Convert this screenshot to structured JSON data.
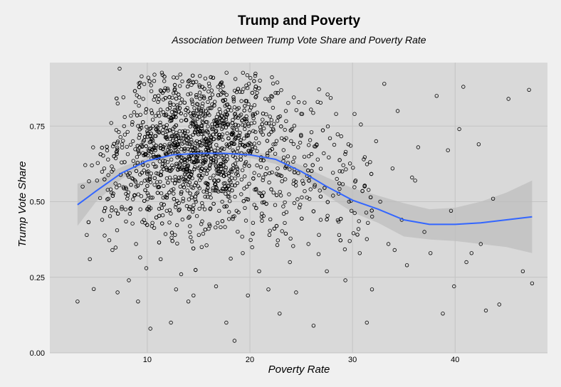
{
  "chart_data": {
    "type": "scatter",
    "title": "Trump and Poverty",
    "subtitle": "Association between Trump Vote Share and Poverty Rate",
    "xlabel": "Poverty Rate",
    "ylabel": "Trump Vote Share",
    "xlim": [
      0.5,
      49
    ],
    "ylim": [
      0,
      0.96
    ],
    "x_ticks": [
      10,
      20,
      30,
      40
    ],
    "x_tick_labels": [
      "10",
      "20",
      "30",
      "40"
    ],
    "y_ticks": [
      0,
      0.25,
      0.5,
      0.75
    ],
    "y_tick_labels": [
      "0.00",
      "0.25",
      "0.50",
      "0.75"
    ],
    "grid": true,
    "legend": "none",
    "colors": {
      "panel": "#d9d9d9",
      "background": "#f0f0f0",
      "grid": "#c4c4c4",
      "point": "#000000",
      "smooth_line": "#3366ff",
      "ribbon": "#bdbdbd"
    },
    "points": [
      [
        3.2,
        0.17
      ],
      [
        3.7,
        0.55
      ],
      [
        4.1,
        0.39
      ],
      [
        4.4,
        0.31
      ],
      [
        4.6,
        0.62
      ],
      [
        5.1,
        0.57
      ],
      [
        5.6,
        0.44
      ],
      [
        5.8,
        0.61
      ],
      [
        6.2,
        0.51
      ],
      [
        6.6,
        0.34
      ],
      [
        6.9,
        0.56
      ],
      [
        7.1,
        0.2
      ],
      [
        7.3,
        0.94
      ],
      [
        7.5,
        0.63
      ],
      [
        7.8,
        0.78
      ],
      [
        8.1,
        0.52
      ],
      [
        8.3,
        0.46
      ],
      [
        8.6,
        0.7
      ],
      [
        8.9,
        0.36
      ],
      [
        9.1,
        0.17
      ],
      [
        9.3,
        0.59
      ],
      [
        9.6,
        0.84
      ],
      [
        9.9,
        0.28
      ],
      [
        10.1,
        0.67
      ],
      [
        10.3,
        0.08
      ],
      [
        10.5,
        0.43
      ],
      [
        10.7,
        0.92
      ],
      [
        10.9,
        0.74
      ],
      [
        11.1,
        0.55
      ],
      [
        11.3,
        0.31
      ],
      [
        11.5,
        0.86
      ],
      [
        11.7,
        0.62
      ],
      [
        11.9,
        0.47
      ],
      [
        12.1,
        0.78
      ],
      [
        12.3,
        0.1
      ],
      [
        12.5,
        0.69
      ],
      [
        12.7,
        0.39
      ],
      [
        12.9,
        0.91
      ],
      [
        13.1,
        0.58
      ],
      [
        13.3,
        0.26
      ],
      [
        13.5,
        0.72
      ],
      [
        13.7,
        0.64
      ],
      [
        13.9,
        0.81
      ],
      [
        14.1,
        0.45
      ],
      [
        14.3,
        0.66
      ],
      [
        14.5,
        0.19
      ],
      [
        14.7,
        0.76
      ],
      [
        14.9,
        0.53
      ],
      [
        15.1,
        0.88
      ],
      [
        15.3,
        0.35
      ],
      [
        15.5,
        0.7
      ],
      [
        15.7,
        0.61
      ],
      [
        15.9,
        0.83
      ],
      [
        16.1,
        0.42
      ],
      [
        16.3,
        0.74
      ],
      [
        16.5,
        0.57
      ],
      [
        16.7,
        0.22
      ],
      [
        16.9,
        0.79
      ],
      [
        17.1,
        0.66
      ],
      [
        17.3,
        0.5
      ],
      [
        17.5,
        0.86
      ],
      [
        17.7,
        0.1
      ],
      [
        17.9,
        0.71
      ],
      [
        18.1,
        0.6
      ],
      [
        18.3,
        0.76
      ],
      [
        18.5,
        0.04
      ],
      [
        18.7,
        0.47
      ],
      [
        18.9,
        0.81
      ],
      [
        19.1,
        0.65
      ],
      [
        19.3,
        0.33
      ],
      [
        19.5,
        0.74
      ],
      [
        19.7,
        0.55
      ],
      [
        19.9,
        0.89
      ],
      [
        20.1,
        0.69
      ],
      [
        20.3,
        0.43
      ],
      [
        20.5,
        0.79
      ],
      [
        20.7,
        0.62
      ],
      [
        20.9,
        0.27
      ],
      [
        21.1,
        0.73
      ],
      [
        21.3,
        0.58
      ],
      [
        21.5,
        0.84
      ],
      [
        21.7,
        0.66
      ],
      [
        21.9,
        0.39
      ],
      [
        22.1,
        0.77
      ],
      [
        22.3,
        0.53
      ],
      [
        22.5,
        0.86
      ],
      [
        22.7,
        0.61
      ],
      [
        22.9,
        0.13
      ],
      [
        23.1,
        0.71
      ],
      [
        23.3,
        0.46
      ],
      [
        23.5,
        0.8
      ],
      [
        23.7,
        0.65
      ],
      [
        23.9,
        0.3
      ],
      [
        24.1,
        0.74
      ],
      [
        24.3,
        0.57
      ],
      [
        24.5,
        0.2
      ],
      [
        24.7,
        0.68
      ],
      [
        24.9,
        0.49
      ],
      [
        25.1,
        0.79
      ],
      [
        25.4,
        0.62
      ],
      [
        25.7,
        0.36
      ],
      [
        26.0,
        0.73
      ],
      [
        26.3,
        0.55
      ],
      [
        26.6,
        0.83
      ],
      [
        26.9,
        0.44
      ],
      [
        27.2,
        0.66
      ],
      [
        27.5,
        0.27
      ],
      [
        27.8,
        0.71
      ],
      [
        28.1,
        0.52
      ],
      [
        28.4,
        0.79
      ],
      [
        28.7,
        0.39
      ],
      [
        29.0,
        0.6
      ],
      [
        29.3,
        0.24
      ],
      [
        29.6,
        0.69
      ],
      [
        29.9,
        0.47
      ],
      [
        30.3,
        0.57
      ],
      [
        30.7,
        0.33
      ],
      [
        31.1,
        0.64
      ],
      [
        31.5,
        0.43
      ],
      [
        31.9,
        0.21
      ],
      [
        32.3,
        0.7
      ],
      [
        32.7,
        0.5
      ],
      [
        33.1,
        0.89
      ],
      [
        33.5,
        0.36
      ],
      [
        33.9,
        0.61
      ],
      [
        34.4,
        0.8
      ],
      [
        34.8,
        0.44
      ],
      [
        35.3,
        0.29
      ],
      [
        35.8,
        0.58
      ],
      [
        36.4,
        0.68
      ],
      [
        37.0,
        0.4
      ],
      [
        37.6,
        0.33
      ],
      [
        38.2,
        0.85
      ],
      [
        38.8,
        0.13
      ],
      [
        39.3,
        0.67
      ],
      [
        39.9,
        0.22
      ],
      [
        40.4,
        0.74
      ],
      [
        40.8,
        0.88
      ],
      [
        41.6,
        0.33
      ],
      [
        42.3,
        0.69
      ],
      [
        43.0,
        0.14
      ],
      [
        43.7,
        0.51
      ],
      [
        44.3,
        0.16
      ],
      [
        45.2,
        0.84
      ],
      [
        46.6,
        0.27
      ],
      [
        47.2,
        0.87
      ],
      [
        47.5,
        0.23
      ],
      [
        36.1,
        0.57
      ],
      [
        34.1,
        0.34
      ],
      [
        30.2,
        0.79
      ],
      [
        31.4,
        0.1
      ],
      [
        41.1,
        0.3
      ],
      [
        42.5,
        0.36
      ],
      [
        39.6,
        0.47
      ],
      [
        26.2,
        0.09
      ],
      [
        14.0,
        0.17
      ],
      [
        19.8,
        0.19
      ],
      [
        12.8,
        0.21
      ],
      [
        8.2,
        0.24
      ],
      [
        21.8,
        0.21
      ]
    ],
    "smooth": {
      "x": [
        3.2,
        5,
        7.5,
        10,
        12.5,
        15,
        17.5,
        20,
        22.5,
        25,
        27.5,
        30,
        32.5,
        35,
        37.5,
        40,
        42.5,
        45,
        47.5
      ],
      "y": [
        0.49,
        0.535,
        0.595,
        0.635,
        0.655,
        0.66,
        0.66,
        0.655,
        0.64,
        0.6,
        0.55,
        0.505,
        0.475,
        0.44,
        0.425,
        0.425,
        0.43,
        0.44,
        0.45
      ],
      "lower": [
        0.42,
        0.5,
        0.575,
        0.625,
        0.645,
        0.65,
        0.65,
        0.645,
        0.625,
        0.58,
        0.52,
        0.465,
        0.43,
        0.385,
        0.375,
        0.37,
        0.36,
        0.35,
        0.33
      ],
      "upper": [
        0.56,
        0.57,
        0.615,
        0.645,
        0.665,
        0.67,
        0.67,
        0.665,
        0.655,
        0.62,
        0.58,
        0.545,
        0.52,
        0.495,
        0.475,
        0.48,
        0.5,
        0.53,
        0.57
      ]
    }
  }
}
